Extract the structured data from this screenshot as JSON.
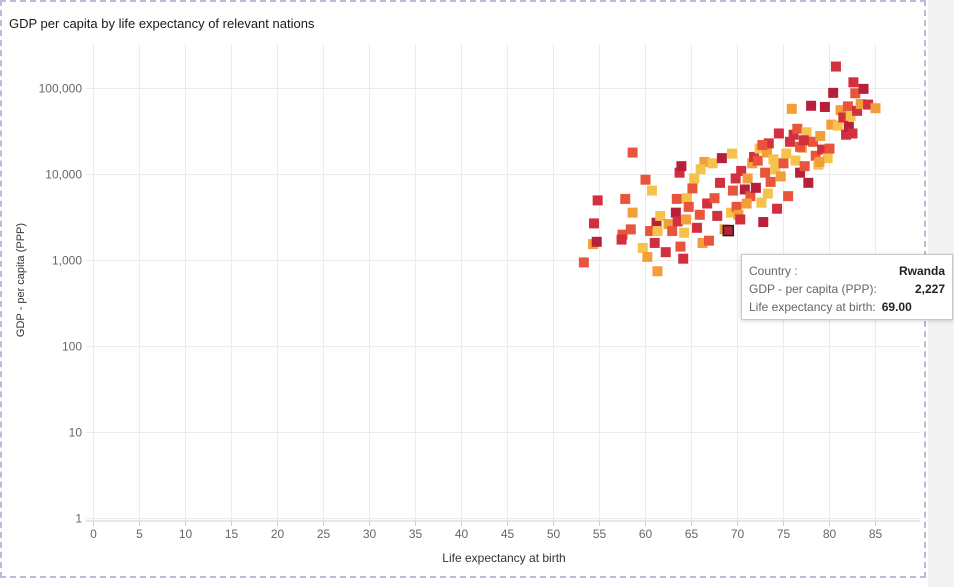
{
  "chart_data": {
    "type": "scatter",
    "title": "GDP per capita by life expectancy of relevant nations",
    "xlabel": "Life expectancy at birth",
    "ylabel": "GDP - per capita (PPP)",
    "xlim": [
      0,
      90
    ],
    "ylim": [
      1,
      300000
    ],
    "yscale": "log",
    "xticks": [
      "0",
      "5",
      "10",
      "15",
      "20",
      "25",
      "30",
      "35",
      "40",
      "45",
      "50",
      "55",
      "60",
      "65",
      "70",
      "75",
      "80",
      "85"
    ],
    "yticks": [
      {
        "v": 1,
        "label": "1"
      },
      {
        "v": 10,
        "label": "10"
      },
      {
        "v": 100,
        "label": "100"
      },
      {
        "v": 1000,
        "label": "1,000"
      },
      {
        "v": 10000,
        "label": "10,000"
      },
      {
        "v": 100000,
        "label": "100,000"
      }
    ],
    "grid": true,
    "marker": "square",
    "palette": [
      "#f6c34a",
      "#f29e3b",
      "#e8553a",
      "#d22f3f",
      "#b81f3a"
    ],
    "points": [
      [
        53.3,
        950,
        2
      ],
      [
        54.3,
        1550,
        1
      ],
      [
        54.4,
        2700,
        3
      ],
      [
        54.7,
        1650,
        4
      ],
      [
        54.8,
        5000,
        3
      ],
      [
        57.5,
        2000,
        2
      ],
      [
        57.8,
        5200,
        2
      ],
      [
        57.4,
        1750,
        3
      ],
      [
        58.4,
        2300,
        2
      ],
      [
        58.6,
        3600,
        1
      ],
      [
        58.6,
        18000,
        2
      ],
      [
        59.7,
        1400,
        0
      ],
      [
        60.0,
        8700,
        2
      ],
      [
        60.2,
        1100,
        1
      ],
      [
        60.5,
        2200,
        2
      ],
      [
        60.7,
        6500,
        0
      ],
      [
        61.0,
        1600,
        3
      ],
      [
        61.2,
        2750,
        4
      ],
      [
        61.3,
        750,
        1
      ],
      [
        61.3,
        2200,
        0
      ],
      [
        61.6,
        3300,
        0
      ],
      [
        62.2,
        1250,
        3
      ],
      [
        62.5,
        2650,
        1
      ],
      [
        62.9,
        2200,
        2
      ],
      [
        63.3,
        3600,
        4
      ],
      [
        63.4,
        5200,
        2
      ],
      [
        63.5,
        2850,
        3
      ],
      [
        63.7,
        10500,
        3
      ],
      [
        63.9,
        12500,
        4
      ],
      [
        63.8,
        1450,
        2
      ],
      [
        64.1,
        1050,
        3
      ],
      [
        64.2,
        2100,
        0
      ],
      [
        64.4,
        3000,
        1
      ],
      [
        64.5,
        5300,
        0
      ],
      [
        64.7,
        4200,
        2
      ],
      [
        65.1,
        6900,
        2
      ],
      [
        65.3,
        9000,
        0
      ],
      [
        65.6,
        2400,
        3
      ],
      [
        65.9,
        3400,
        2
      ],
      [
        66.2,
        1600,
        1
      ],
      [
        66.4,
        14000,
        1
      ],
      [
        66.7,
        4600,
        3
      ],
      [
        66.9,
        1700,
        2
      ],
      [
        67.3,
        13500,
        0
      ],
      [
        67.5,
        5300,
        2
      ],
      [
        67.8,
        3300,
        3
      ],
      [
        68.1,
        8000,
        3
      ],
      [
        68.3,
        15500,
        4
      ],
      [
        68.6,
        2300,
        1
      ],
      [
        69.0,
        2227,
        4
      ],
      [
        69.3,
        3600,
        0
      ],
      [
        69.4,
        17500,
        0
      ],
      [
        69.5,
        6500,
        2
      ],
      [
        69.9,
        4200,
        2
      ],
      [
        70.1,
        3400,
        1
      ],
      [
        70.3,
        3000,
        3
      ],
      [
        70.4,
        11000,
        3
      ],
      [
        70.8,
        6700,
        4
      ],
      [
        71.1,
        9000,
        1
      ],
      [
        71.4,
        5600,
        2
      ],
      [
        71.6,
        13500,
        1
      ],
      [
        71.8,
        16000,
        3
      ],
      [
        72.0,
        7000,
        4
      ],
      [
        72.2,
        14500,
        2
      ],
      [
        72.4,
        20000,
        0
      ],
      [
        72.6,
        4700,
        0
      ],
      [
        72.8,
        2800,
        4
      ],
      [
        73.0,
        10500,
        2
      ],
      [
        73.2,
        18000,
        1
      ],
      [
        73.4,
        23000,
        3
      ],
      [
        73.6,
        8200,
        2
      ],
      [
        73.9,
        15000,
        0
      ],
      [
        74.1,
        11500,
        0
      ],
      [
        74.3,
        4000,
        3
      ],
      [
        74.5,
        30000,
        3
      ],
      [
        74.7,
        9500,
        1
      ],
      [
        75.0,
        13500,
        2
      ],
      [
        75.3,
        17500,
        0
      ],
      [
        75.5,
        5600,
        2
      ],
      [
        75.7,
        24000,
        3
      ],
      [
        75.9,
        58000,
        1
      ],
      [
        76.1,
        29000,
        3
      ],
      [
        76.3,
        14500,
        0
      ],
      [
        76.5,
        34000,
        2
      ],
      [
        76.8,
        10500,
        4
      ],
      [
        77.0,
        20500,
        1
      ],
      [
        77.3,
        12500,
        2
      ],
      [
        77.5,
        31000,
        0
      ],
      [
        77.7,
        8000,
        4
      ],
      [
        78.0,
        63000,
        4
      ],
      [
        78.2,
        24000,
        2
      ],
      [
        78.5,
        16500,
        2
      ],
      [
        78.8,
        13000,
        0
      ],
      [
        79.0,
        28000,
        1
      ],
      [
        79.2,
        19500,
        3
      ],
      [
        79.5,
        61000,
        4
      ],
      [
        79.8,
        15500,
        0
      ],
      [
        80.0,
        20000,
        2
      ],
      [
        80.2,
        38000,
        1
      ],
      [
        80.4,
        89000,
        4
      ],
      [
        80.7,
        180000,
        3
      ],
      [
        80.9,
        37000,
        0
      ],
      [
        81.2,
        56000,
        1
      ],
      [
        81.5,
        46000,
        3
      ],
      [
        81.8,
        29000,
        3
      ],
      [
        82.0,
        62000,
        2
      ],
      [
        82.1,
        36000,
        4
      ],
      [
        82.3,
        48000,
        0
      ],
      [
        82.5,
        30000,
        3
      ],
      [
        82.6,
        118000,
        3
      ],
      [
        82.8,
        88000,
        2
      ],
      [
        83.0,
        55000,
        3
      ],
      [
        83.4,
        66000,
        1
      ],
      [
        83.7,
        99000,
        4
      ],
      [
        84.2,
        65000,
        3
      ],
      [
        85.0,
        59000,
        1
      ],
      [
        71.0,
        4600,
        1
      ],
      [
        73.3,
        6000,
        0
      ],
      [
        76.8,
        21000,
        2
      ],
      [
        78.9,
        14000,
        1
      ],
      [
        66.0,
        11500,
        0
      ],
      [
        69.8,
        9000,
        3
      ],
      [
        72.7,
        22000,
        2
      ],
      [
        77.2,
        25000,
        3
      ]
    ]
  },
  "tooltip": {
    "country_label": "Country :",
    "country_value": "Rwanda",
    "gdp_label": "GDP - per capita (PPP):",
    "gdp_value": "2,227",
    "life_label": "Life expectancy at birth:",
    "life_value": "69.00"
  }
}
